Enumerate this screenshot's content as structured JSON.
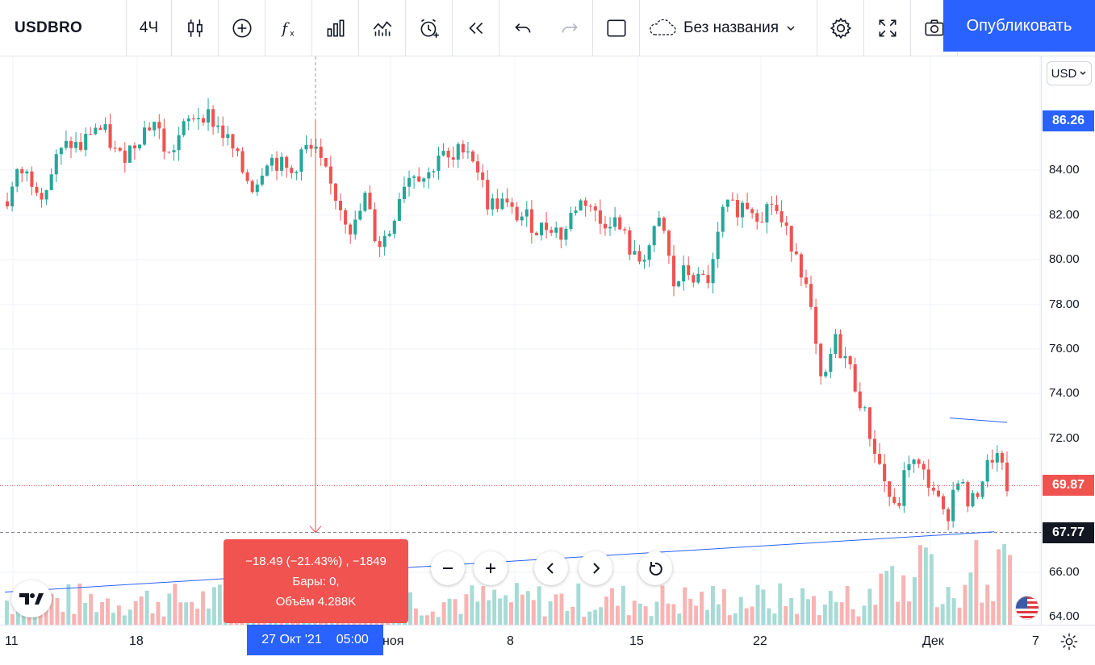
{
  "toolbar": {
    "symbol": "USDBRO",
    "interval": "4Ч",
    "layout_name": "Без названия",
    "publish_label": "Опубликовать",
    "icons": [
      "candles-icon",
      "add-symbol-icon",
      "indicators-icon",
      "bar-chart-icon",
      "compare-icon",
      "alert-icon",
      "replay-icon",
      "undo-icon",
      "redo-icon",
      "rectangle-icon",
      "cloud-icon",
      "settings-icon",
      "fullscreen-icon",
      "camera-icon"
    ]
  },
  "price_scale": {
    "currency": "USD",
    "labels": [
      "84.00",
      "82.00",
      "80.00",
      "78.00",
      "76.00",
      "74.00",
      "72.00",
      "66.00",
      "64.00"
    ],
    "last_price": "69.87",
    "high_price": "86.26",
    "crosshair_price": "67.77",
    "colors": {
      "last_price": "#ef5350",
      "high_price": "#2962ff",
      "crosshair": "#131722"
    }
  },
  "time_axis": {
    "labels": [
      "11",
      "18",
      "ноя",
      "8",
      "15",
      "22",
      "Дек",
      "7"
    ],
    "crosshair_date": "27 Окт '21",
    "crosshair_time": "05:00"
  },
  "measure": {
    "line1": "−18.49 (−21.43%) , −1849",
    "line2": "Бары: 0,",
    "line3": "Объём 4.288K"
  },
  "chart_data": {
    "type": "candlestick",
    "symbol": "USDBRO",
    "timeframe": "4H",
    "ylim": [
      63.8,
      88.0
    ],
    "up_color": "#26a69a",
    "down_color": "#ef5350",
    "close_path": [
      82.6,
      84.0,
      83.6,
      83.0,
      84.5,
      85.2,
      85.0,
      86.0,
      85.6,
      84.5,
      85.0,
      85.8,
      86.2,
      84.5,
      85.6,
      86.4,
      86.6,
      86.0,
      85.2,
      84.0,
      83.2,
      84.6,
      84.3,
      83.8,
      85.0,
      84.7,
      83.5,
      82.4,
      81.2,
      82.8,
      80.6,
      81.3,
      83.4,
      84.0,
      83.6,
      84.8,
      84.2,
      85.3,
      84.3,
      82.4,
      82.6,
      82.0,
      81.9,
      81.3,
      81.6,
      81.0,
      82.4,
      82.7,
      81.6,
      81.9,
      81.0,
      79.8,
      80.6,
      81.8,
      78.8,
      79.5,
      79.0,
      79.2,
      82.2,
      82.3,
      82.5,
      82.0,
      82.6,
      81.2,
      80.4,
      78.0,
      74.0,
      76.4,
      75.5,
      73.9,
      72.0,
      70.2,
      68.5,
      71.1,
      70.5,
      69.8,
      68.2,
      70.4,
      68.8,
      70.2,
      71.4,
      69.87
    ],
    "volume_ticks": 180,
    "drawings": [
      {
        "type": "trend_line",
        "color": "#2962ff",
        "from_price": 65.1,
        "to_price": 67.8
      },
      {
        "type": "trend_line",
        "color": "#2962ff",
        "from_price": 72.9,
        "to_price": 72.7
      },
      {
        "type": "measure",
        "color": "#ef5350",
        "from_price": 86.26,
        "to_price": 67.77
      }
    ]
  }
}
